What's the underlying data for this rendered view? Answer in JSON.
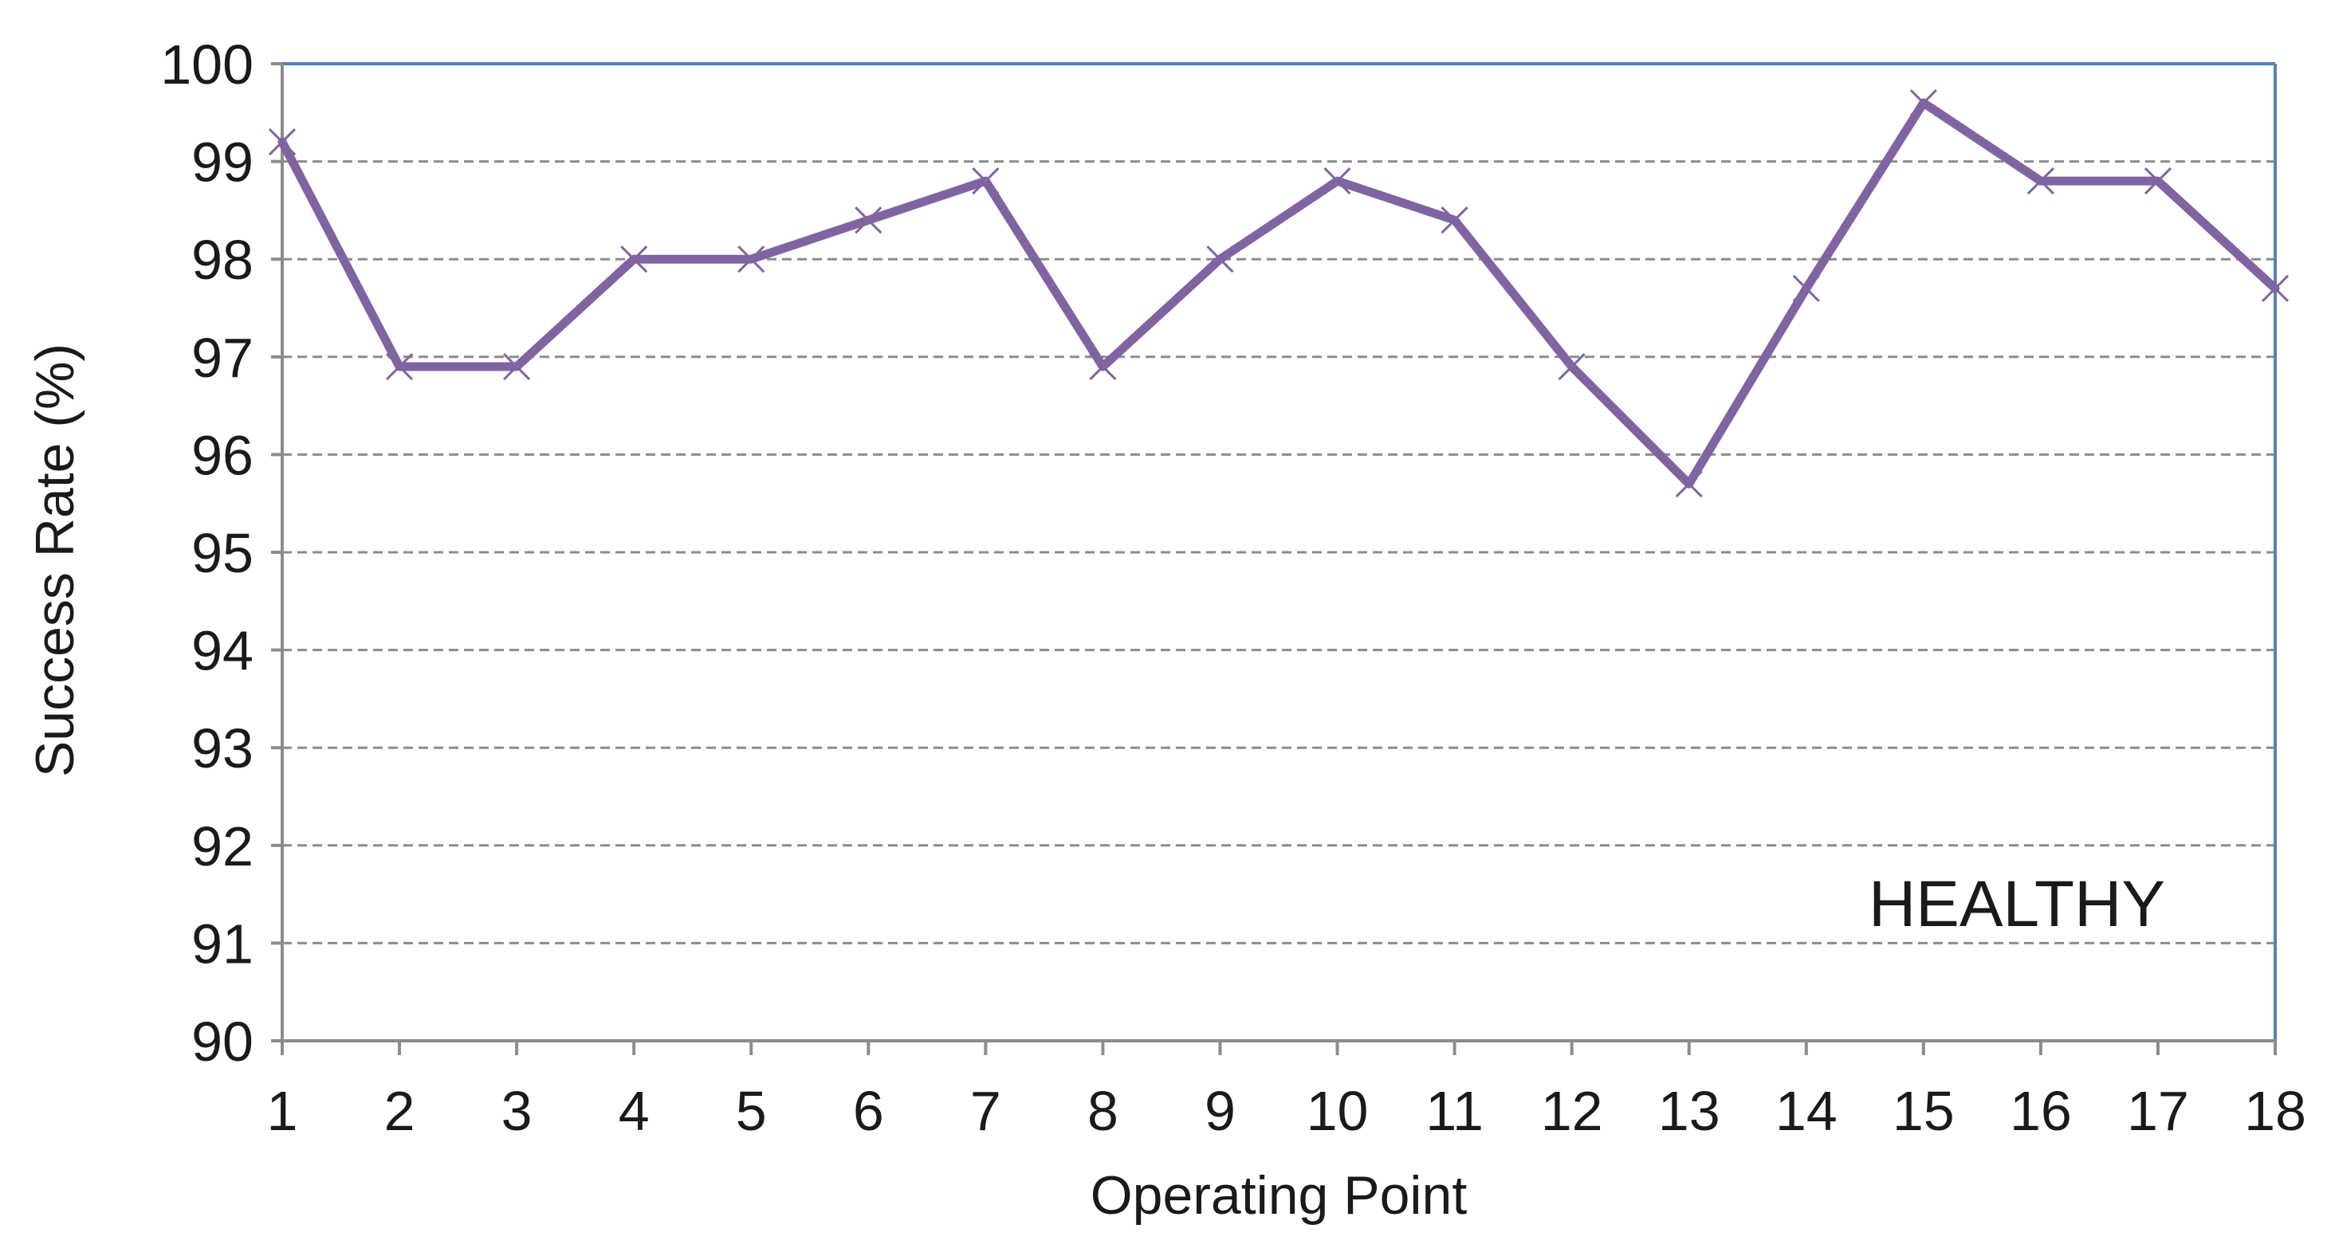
{
  "chart_data": {
    "type": "line",
    "title": "",
    "xlabel": "Operating Point",
    "ylabel": "Success Rate (%)",
    "annotation": "HEALTHY",
    "x": [
      1,
      2,
      3,
      4,
      5,
      6,
      7,
      8,
      9,
      10,
      11,
      12,
      13,
      14,
      15,
      16,
      17,
      18
    ],
    "xtick_labels": [
      "1",
      "2",
      "3",
      "4",
      "5",
      "6",
      "7",
      "8",
      "9",
      "10",
      "11",
      "12",
      "13",
      "14",
      "15",
      "16",
      "17",
      "18"
    ],
    "ytick_labels": [
      "90",
      "91",
      "92",
      "93",
      "94",
      "95",
      "96",
      "97",
      "98",
      "99",
      "100"
    ],
    "ylim": [
      90,
      100
    ],
    "xlim": [
      1,
      18
    ],
    "grid": "horizontal-dashed",
    "legend": "none",
    "series": [
      {
        "marker": "x",
        "color": "#8064a2",
        "values": [
          99.2,
          96.9,
          96.9,
          98.0,
          98.0,
          98.4,
          98.8,
          96.9,
          98.0,
          98.8,
          98.4,
          96.9,
          95.7,
          97.7,
          99.6,
          98.8,
          98.8,
          97.7
        ]
      }
    ],
    "colors": {
      "line": "#8064a2",
      "grid": "#8c8c8c",
      "plot_border": "#4f81bd",
      "axis": "#8c8c8c",
      "text": "#1a1a1a"
    }
  }
}
